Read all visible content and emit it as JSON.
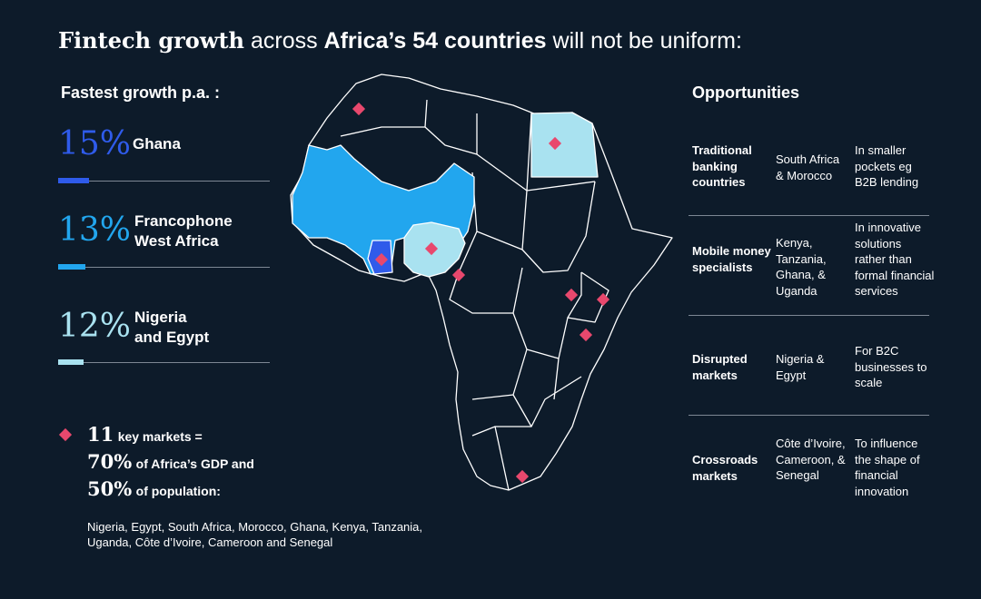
{
  "title": {
    "part1": "Fintech growth",
    "part2": " across ",
    "part3": "Africa’s 54 countries",
    "part4": " will not be uniform:"
  },
  "fastest": {
    "heading": "Fastest growth p.a. :",
    "items": [
      {
        "pct": "15%",
        "label_line1": "Ghana",
        "label_line2": "",
        "color": "#2f5bea",
        "share": 15
      },
      {
        "pct": "13%",
        "label_line1": "Francophone",
        "label_line2": "West Africa",
        "color": "#22a6ee",
        "share": 13
      },
      {
        "pct": "12%",
        "label_line1": "Nigeria",
        "label_line2": "and Egypt",
        "color": "#a9e2f0",
        "share": 12
      }
    ]
  },
  "key_markets": {
    "count": "11",
    "count_label": "key markets =",
    "gdp_pct": "70%",
    "gdp_label": "of Africa’s GDP and",
    "pop_pct": "50%",
    "pop_label": "of population:",
    "list": "Nigeria, Egypt, South Africa, Morocco, Ghana, Kenya, Tanzania, Uganda, Côte d’Ivoire, Cameroon and Senegal"
  },
  "opportunities": {
    "heading": "Opportunities",
    "rows": [
      {
        "type": "Traditional banking countries",
        "countries": "South Africa & Morocco",
        "description": "In smaller pockets eg B2B lending"
      },
      {
        "type": "Mobile money specialists",
        "countries": "Kenya, Tanzania, Ghana, & Uganda",
        "description": "In innovative solutions rather than formal financial services"
      },
      {
        "type": "Disrupted markets",
        "countries": "Nigeria & Egypt",
        "description": "For B2C businesses to scale"
      },
      {
        "type": "Crossroads markets",
        "countries": "Côte d’Ivoire, Cameroon, & Senegal",
        "description": "To influence the shape of financial innovation"
      }
    ]
  },
  "colors": {
    "background": "#0d1b2a",
    "ghana": "#2f5bea",
    "francophone": "#22a6ee",
    "nigeria_egypt": "#a9e2f0",
    "marker": "#e8486d",
    "divider": "#7d8794",
    "land": "#0d1b2a",
    "border": "#ffffff"
  }
}
